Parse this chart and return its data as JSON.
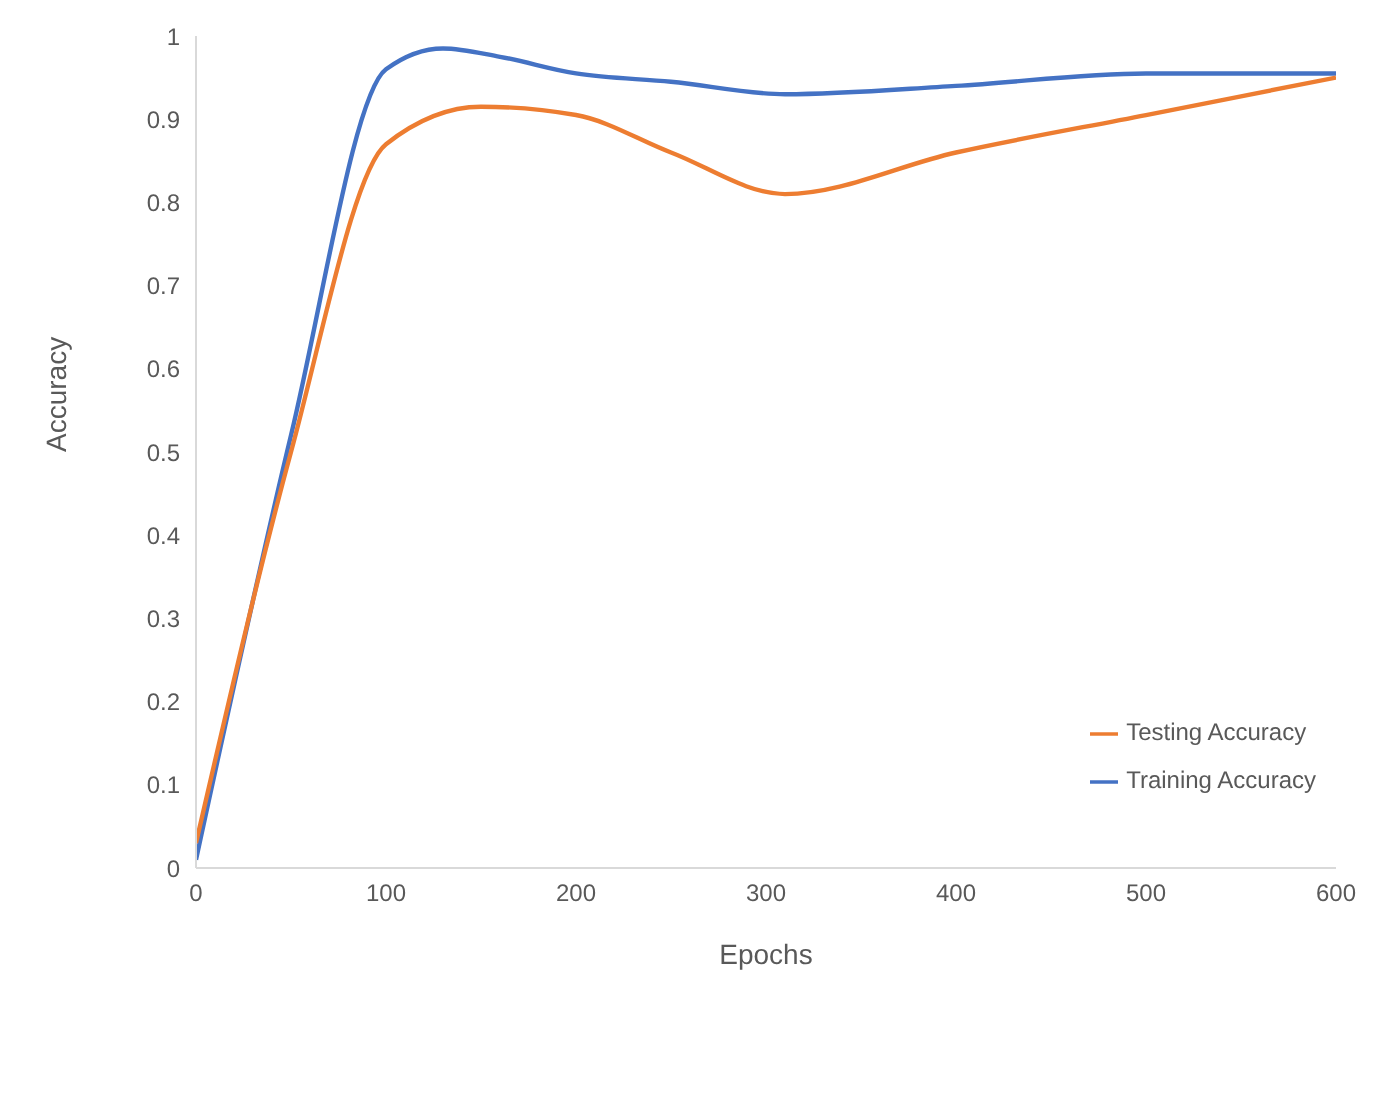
{
  "chart_data": {
    "type": "line",
    "xlabel": "Epochs",
    "ylabel": "Accuracy",
    "xlim": [
      0,
      600
    ],
    "xticks": [
      0,
      100,
      200,
      300,
      400,
      500,
      600
    ],
    "ylim": [
      0,
      1
    ],
    "yticks": [
      0,
      0.1,
      0.2,
      0.3,
      0.4,
      0.5,
      0.6,
      0.7,
      0.8,
      0.9,
      1
    ],
    "grid": false,
    "legend": "bottom right",
    "marker": "none",
    "line_style": "solid",
    "series": [
      {
        "name": "Training Accuracy",
        "color": "#4472c4",
        "x": [
          0,
          50,
          100,
          130,
          160,
          200,
          250,
          310,
          400,
          500,
          600
        ],
        "values": [
          0.01,
          0.52,
          0.96,
          0.985,
          0.975,
          0.955,
          0.945,
          0.93,
          0.94,
          0.955,
          0.955
        ]
      },
      {
        "name": "Testing Accuracy",
        "color": "#ed7d31",
        "x": [
          0,
          50,
          100,
          150,
          200,
          250,
          310,
          400,
          500,
          600
        ],
        "values": [
          0.03,
          0.5,
          0.87,
          0.915,
          0.905,
          0.86,
          0.81,
          0.86,
          0.905,
          0.95
        ]
      }
    ]
  }
}
